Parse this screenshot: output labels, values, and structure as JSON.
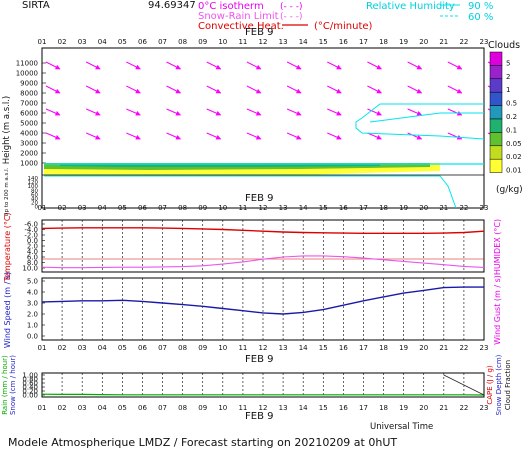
{
  "header": {
    "station": "SIRTA",
    "coords": "94.69347",
    "isotherm_label": "0°C isotherm",
    "snow_rain_label": "Snow-Rain Limit",
    "convective_label": "Convective Heat.",
    "convective_unit": "(°C/minute)",
    "rh_label": "Relative Humidity",
    "rh_90": "90 %",
    "rh_60": "60 %",
    "date": "FEB  9"
  },
  "hours": [
    "01",
    "02",
    "03",
    "04",
    "05",
    "06",
    "07",
    "08",
    "09",
    "10",
    "11",
    "12",
    "13",
    "14",
    "15",
    "16",
    "17",
    "18",
    "19",
    "20",
    "21",
    "22",
    "23"
  ],
  "colors": {
    "wind_arrow": "#ff00ff",
    "rh_line": "#00e5ee",
    "temperature": "#dd0000",
    "humidex": "#ee55ee",
    "wind_speed": "#1a1aaa",
    "rain": "#00aa00",
    "snow": "#0000cc",
    "label_blue": "#2222cc",
    "label_red": "#dd0000",
    "label_green": "#00aa00",
    "label_magenta": "#ee00ee"
  },
  "height_panel": {
    "ylabel": "Height  (m a.s.l.)",
    "ylabel_low": "Up to 200 m a.s.l.",
    "yticks": [
      "11000",
      "10000",
      "9000",
      "8000",
      "7000",
      "6000",
      "5000",
      "4000",
      "3000",
      "2000",
      "1000"
    ],
    "yticks_low": [
      "140",
      "120",
      "100",
      "80",
      "60",
      "40",
      "20",
      "0"
    ]
  },
  "clouds_legend": {
    "title": "Clouds",
    "unit": "(g/kg)",
    "levels": [
      "5",
      "2",
      "1",
      "0.5",
      "0.2",
      "0.1",
      "0.05",
      "0.02",
      "0.01"
    ],
    "colors": [
      "#dd00dd",
      "#9922cc",
      "#5a3cc8",
      "#3355cc",
      "#2299bb",
      "#20b070",
      "#60c030",
      "#c0dd20",
      "#ffff33"
    ]
  },
  "temperature_panel": {
    "ylabel": "Temperature (°C)",
    "y2label": "HUMIDEX (°C)",
    "yticks": [
      "-6.0",
      "-4.0",
      "-2.0",
      "0.0",
      "2.0",
      "4.0",
      "6.0",
      "8.0",
      "10.0"
    ]
  },
  "wind_panel": {
    "ylabel": "Wind Speed (m / s)",
    "y2label": "Wind Gust (m / s)",
    "yticks": [
      "5.0",
      "4.0",
      "3.0",
      "2.0",
      "1.0",
      "0.0"
    ]
  },
  "precip_panel": {
    "ylabel_rain": "Rain (mm / hour)",
    "ylabel_snow": "Snow (cm / hour)",
    "y2label_cape": "CAPE (J / g)",
    "y2label_snowdepth": "Snow Depth (cm)",
    "y2label_cloudfrac": "Cloud Fraction",
    "yticks": [
      "1.00",
      "0.80",
      "0.60",
      "0.40",
      "0.20",
      "0.00"
    ]
  },
  "footer": {
    "xlabel": "Universal Time",
    "caption": "Modele Atmospherique LMDZ / Forecast starting on 20210209 at 0hUT"
  },
  "chart_data": [
    {
      "type": "line",
      "name": "temperature",
      "x": [
        1,
        2,
        3,
        4,
        5,
        6,
        7,
        8,
        9,
        10,
        11,
        12,
        13,
        14,
        15,
        16,
        17,
        18,
        19,
        20,
        21,
        22,
        23
      ],
      "values": [
        -4.4,
        -4.5,
        -4.6,
        -4.6,
        -4.6,
        -4.6,
        -4.5,
        -4.4,
        -4.2,
        -4.0,
        -3.7,
        -3.4,
        -3.1,
        -2.9,
        -2.8,
        -2.7,
        -2.6,
        -2.6,
        -2.6,
        -2.6,
        -2.7,
        -2.9,
        -3.4
      ],
      "ylim": [
        -6.0,
        10.0
      ]
    },
    {
      "type": "line",
      "name": "humidex",
      "x": [
        1,
        2,
        3,
        4,
        5,
        6,
        7,
        8,
        9,
        10,
        11,
        12,
        13,
        14,
        15,
        16,
        17,
        18,
        19,
        20,
        21,
        22,
        23
      ],
      "values": [
        9.7,
        9.9,
        9.9,
        9.8,
        9.7,
        9.7,
        9.6,
        9.5,
        9.2,
        8.6,
        7.8,
        6.8,
        6.0,
        5.6,
        5.6,
        5.9,
        6.4,
        7.0,
        7.6,
        8.2,
        8.8,
        9.4,
        9.8
      ],
      "ylim": [
        -6.0,
        10.0
      ]
    },
    {
      "type": "line",
      "name": "wind_speed",
      "x": [
        1,
        2,
        3,
        4,
        5,
        6,
        7,
        8,
        9,
        10,
        11,
        12,
        13,
        14,
        15,
        16,
        17,
        18,
        19,
        20,
        21,
        22,
        23
      ],
      "values": [
        3.1,
        3.15,
        3.2,
        3.2,
        3.25,
        3.15,
        3.0,
        2.85,
        2.7,
        2.5,
        2.3,
        2.1,
        2.0,
        2.15,
        2.4,
        2.8,
        3.2,
        3.55,
        3.9,
        4.15,
        4.4,
        4.45,
        4.45
      ],
      "ylim": [
        0.0,
        5.0
      ]
    },
    {
      "type": "line",
      "name": "rain",
      "x": [
        1,
        2,
        3,
        4,
        5,
        6,
        7,
        8,
        9,
        10,
        11,
        12,
        13,
        14,
        15,
        16,
        17,
        18,
        19,
        20,
        21,
        22,
        23
      ],
      "values": [
        0.04,
        0.03,
        0.03,
        0.02,
        0.01,
        0.01,
        0.01,
        0.01,
        0.01,
        0.01,
        0.01,
        0.01,
        0.01,
        0.01,
        0.01,
        0.01,
        0.01,
        0.01,
        0.01,
        0.01,
        0.01,
        0.01,
        0.0
      ],
      "ylim": [
        0.0,
        1.0
      ]
    },
    {
      "type": "line",
      "name": "cloud_fraction_tail",
      "x": [
        21,
        23
      ],
      "values": [
        1.0,
        0.0
      ],
      "ylim": [
        0.0,
        1.0
      ]
    }
  ]
}
